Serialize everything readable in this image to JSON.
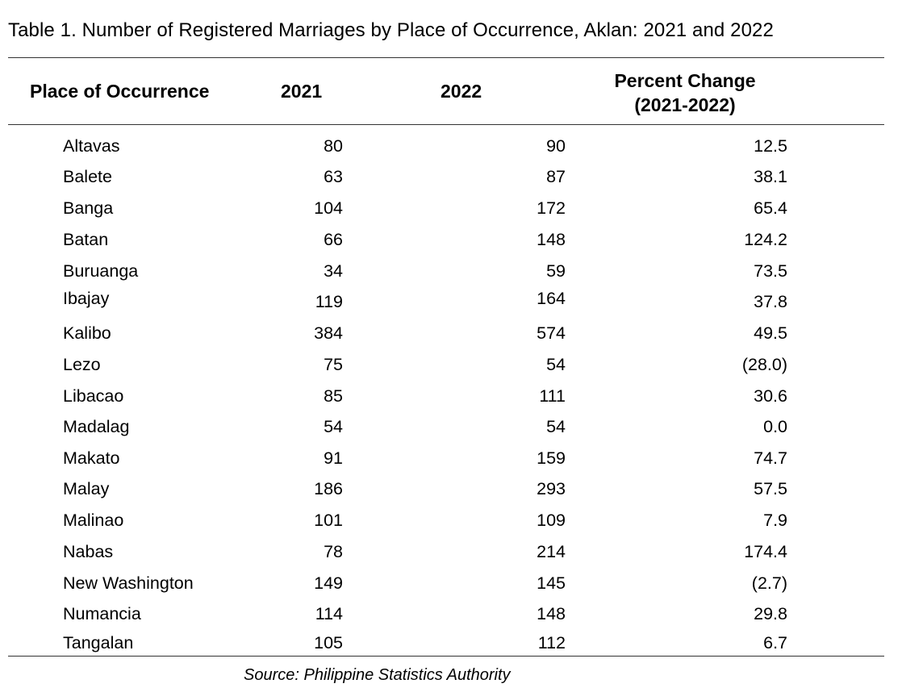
{
  "table": {
    "title": "Table 1.  Number of Registered Marriages by Place of Occurrence, Aklan:  2021 and 2022",
    "headers": {
      "place": "Place of Occurrence",
      "y2021": "2021",
      "y2022": "2022",
      "pct_line1": "Percent Change",
      "pct_line2": "(2021-2022)"
    },
    "rows": [
      {
        "place": "Altavas",
        "y2021": "80",
        "y2022": "90",
        "pct": "12.5"
      },
      {
        "place": "Balete",
        "y2021": "63",
        "y2022": "87",
        "pct": "38.1"
      },
      {
        "place": "Banga",
        "y2021": "104",
        "y2022": "172",
        "pct": "65.4"
      },
      {
        "place": "Batan",
        "y2021": "66",
        "y2022": "148",
        "pct": "124.2"
      },
      {
        "place": "Buruanga",
        "y2021": "34",
        "y2022": "59",
        "pct": "73.5"
      },
      {
        "place": "Ibajay",
        "y2021": "119",
        "y2022": "164",
        "pct": "37.8"
      },
      {
        "place": "Kalibo",
        "y2021": "384",
        "y2022": "574",
        "pct": "49.5"
      },
      {
        "place": "Lezo",
        "y2021": "75",
        "y2022": "54",
        "pct": "(28.0)"
      },
      {
        "place": "Libacao",
        "y2021": "85",
        "y2022": "111",
        "pct": "30.6"
      },
      {
        "place": "Madalag",
        "y2021": "54",
        "y2022": "54",
        "pct": "0.0"
      },
      {
        "place": "Makato",
        "y2021": "91",
        "y2022": "159",
        "pct": "74.7"
      },
      {
        "place": "Malay",
        "y2021": "186",
        "y2022": "293",
        "pct": "57.5"
      },
      {
        "place": "Malinao",
        "y2021": "101",
        "y2022": "109",
        "pct": "7.9"
      },
      {
        "place": "Nabas",
        "y2021": "78",
        "y2022": "214",
        "pct": "174.4"
      },
      {
        "place": "New Washington",
        "y2021": "149",
        "y2022": "145",
        "pct": "(2.7)"
      },
      {
        "place": "Numancia",
        "y2021": "114",
        "y2022": "148",
        "pct": "29.8"
      },
      {
        "place": "Tangalan",
        "y2021": "105",
        "y2022": "112",
        "pct": "6.7"
      }
    ],
    "source": "Source: Philippine Statistics Authority"
  }
}
